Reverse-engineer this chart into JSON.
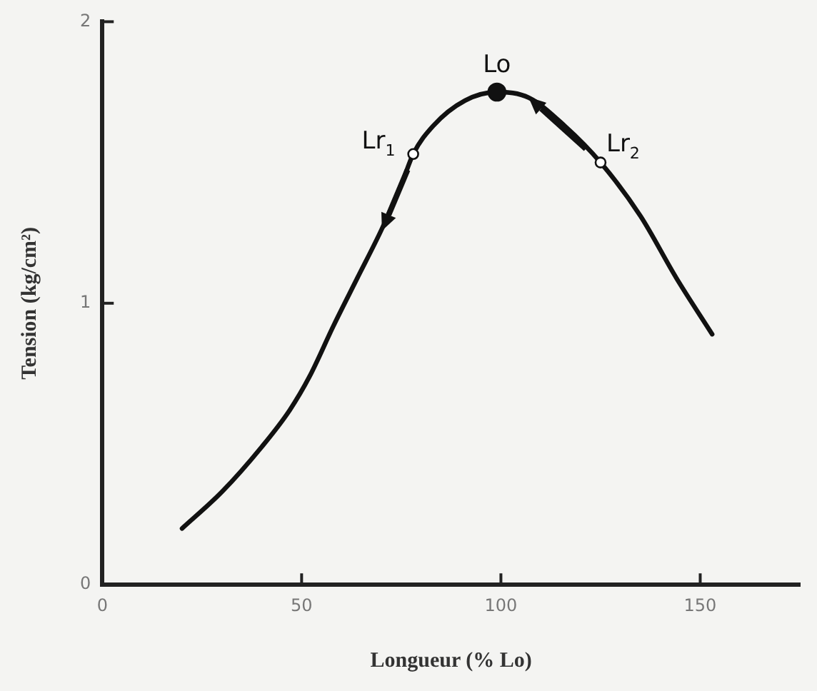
{
  "chart_data": {
    "type": "line",
    "xlabel": "Longueur (% Lo)",
    "ylabel": "Tension (kg/cm²)",
    "xlim": [
      0,
      175
    ],
    "xticks": [
      0,
      50,
      100,
      150
    ],
    "ylim": [
      0,
      2
    ],
    "yticks": [
      0,
      1,
      2
    ],
    "legend": false,
    "series": [
      {
        "color": "#111111",
        "marker": "none",
        "x": [
          20,
          30,
          40,
          47,
          52,
          58,
          64,
          70,
          75,
          78,
          83,
          91,
          99,
          107,
          116,
          125,
          135,
          144,
          153
        ],
        "values": [
          0.2,
          0.33,
          0.49,
          0.62,
          0.74,
          0.92,
          1.09,
          1.26,
          1.42,
          1.53,
          1.63,
          1.72,
          1.75,
          1.73,
          1.63,
          1.5,
          1.31,
          1.09,
          0.89
        ]
      },
      {
        "type": "scatter",
        "color": "#111111",
        "marker": "circle",
        "x": [
          99
        ],
        "values": [
          1.75
        ]
      },
      {
        "type": "scatter",
        "color": "#ffffff",
        "marker": "circle",
        "x": [
          78,
          125
        ],
        "values": [
          1.53,
          1.5
        ]
      }
    ],
    "annotations": [
      {
        "text": "Lo",
        "x": 99,
        "y": 1.75
      },
      {
        "text": "Lr$_{1}$",
        "x": 78,
        "y": 1.53
      },
      {
        "text": "Lr$_{2}$",
        "x": 125,
        "y": 1.5
      }
    ]
  }
}
